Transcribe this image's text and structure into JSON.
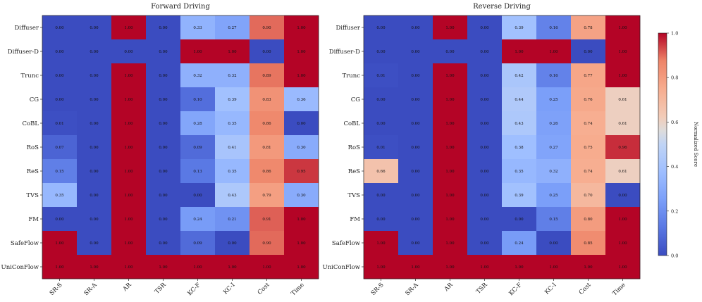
{
  "chart_data": [
    {
      "type": "heatmap",
      "title": "Forward Driving",
      "rows": [
        "Diffuser",
        "Diffuser-D",
        "Trunc",
        "CG",
        "CoBL",
        "RoS",
        "ReS",
        "TVS",
        "FM",
        "SafeFlow",
        "UniConFlow"
      ],
      "columns": [
        "SR-S",
        "SR-A",
        "AR",
        "TSR",
        "KC-F",
        "KC-I",
        "Cost",
        "Time"
      ],
      "values": [
        [
          0.0,
          0.0,
          1.0,
          0.0,
          0.33,
          0.27,
          0.9,
          1.0
        ],
        [
          0.0,
          0.0,
          0.0,
          0.0,
          1.0,
          1.0,
          0.0,
          1.0
        ],
        [
          0.0,
          0.0,
          1.0,
          0.0,
          0.32,
          0.32,
          0.89,
          1.0
        ],
        [
          0.0,
          0.0,
          1.0,
          0.0,
          0.1,
          0.39,
          0.83,
          0.36
        ],
        [
          0.01,
          0.0,
          1.0,
          0.0,
          0.28,
          0.35,
          0.86,
          0.0
        ],
        [
          0.07,
          0.0,
          1.0,
          0.0,
          0.09,
          0.41,
          0.81,
          0.3
        ],
        [
          0.15,
          0.0,
          1.0,
          0.0,
          0.13,
          0.35,
          0.86,
          0.95
        ],
        [
          0.35,
          0.0,
          1.0,
          0.0,
          0.0,
          0.43,
          0.79,
          0.3
        ],
        [
          0.0,
          0.0,
          1.0,
          0.0,
          0.24,
          0.21,
          0.91,
          1.0
        ],
        [
          1.0,
          0.0,
          1.0,
          0.0,
          0.09,
          0.0,
          0.9,
          1.0
        ],
        [
          1.0,
          1.0,
          1.0,
          1.0,
          1.0,
          1.0,
          1.0,
          1.0
        ]
      ]
    },
    {
      "type": "heatmap",
      "title": "Reverse Driving",
      "rows": [
        "Diffuser",
        "Diffuser-D",
        "Trunc",
        "CG",
        "CoBL",
        "RoS",
        "ReS",
        "TVS",
        "FM",
        "SafeFlow",
        "UniConFlow"
      ],
      "columns": [
        "SR-S",
        "SR-A",
        "AR",
        "TSR",
        "KC-F",
        "KC-I",
        "Cost",
        "Time"
      ],
      "values": [
        [
          0.0,
          0.0,
          1.0,
          0.0,
          0.39,
          0.16,
          0.78,
          1.0
        ],
        [
          0.0,
          0.0,
          0.0,
          0.0,
          1.0,
          1.0,
          0.0,
          1.0
        ],
        [
          0.01,
          0.0,
          1.0,
          0.0,
          0.42,
          0.16,
          0.77,
          1.0
        ],
        [
          0.0,
          0.0,
          1.0,
          0.0,
          0.44,
          0.25,
          0.76,
          0.61
        ],
        [
          0.0,
          0.0,
          1.0,
          0.0,
          0.43,
          0.26,
          0.74,
          0.61
        ],
        [
          0.01,
          0.0,
          1.0,
          0.0,
          0.38,
          0.27,
          0.75,
          0.96
        ],
        [
          0.66,
          0.0,
          1.0,
          0.0,
          0.35,
          0.32,
          0.74,
          0.61
        ],
        [
          0.0,
          0.0,
          1.0,
          0.0,
          0.39,
          0.25,
          0.7,
          0.0
        ],
        [
          0.0,
          0.0,
          1.0,
          0.0,
          0.0,
          0.15,
          0.8,
          1.0
        ],
        [
          1.0,
          0.0,
          1.0,
          0.0,
          0.24,
          0.0,
          0.85,
          1.0
        ],
        [
          1.0,
          1.0,
          1.0,
          1.0,
          1.0,
          1.0,
          1.0,
          1.0
        ]
      ]
    }
  ],
  "colorbar": {
    "label": "Normalized Score",
    "colormap": "coolwarm",
    "range": [
      0.0,
      1.0
    ],
    "ticks": [
      "0.0",
      "0.2",
      "0.4",
      "0.6",
      "0.8",
      "1.0"
    ]
  }
}
